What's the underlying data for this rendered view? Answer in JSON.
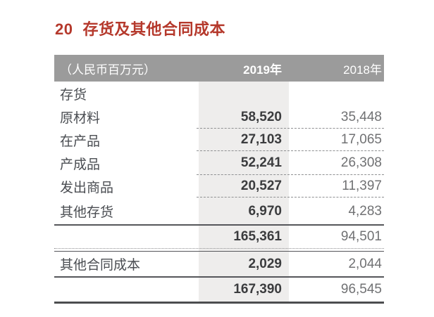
{
  "section": {
    "number": "20",
    "title": "存货及其他合同成本"
  },
  "table": {
    "header": {
      "unit": "（人民币百万元）",
      "col2019": "2019年",
      "col2018": "2018年"
    },
    "rows": [
      {
        "label": "存货",
        "y2019": "",
        "y2018": ""
      },
      {
        "label": "原材料",
        "y2019": "58,520",
        "y2018": "35,448"
      },
      {
        "label": "在产品",
        "y2019": "27,103",
        "y2018": "17,065"
      },
      {
        "label": "产成品",
        "y2019": "52,241",
        "y2018": "26,308"
      },
      {
        "label": "发出商品",
        "y2019": "20,527",
        "y2018": "11,397"
      },
      {
        "label": "其他存货",
        "y2019": "6,970",
        "y2018": "4,283"
      },
      {
        "label": "",
        "y2019": "165,361",
        "y2018": "94,501"
      },
      {
        "label": "其他合同成本",
        "y2019": "2,029",
        "y2018": "2,044"
      },
      {
        "label": "",
        "y2019": "167,390",
        "y2018": "96,545"
      }
    ]
  },
  "colors": {
    "accent_red": "#b5392c",
    "header_bg": "#9b9b9b",
    "column_shade": "#eeedec"
  }
}
